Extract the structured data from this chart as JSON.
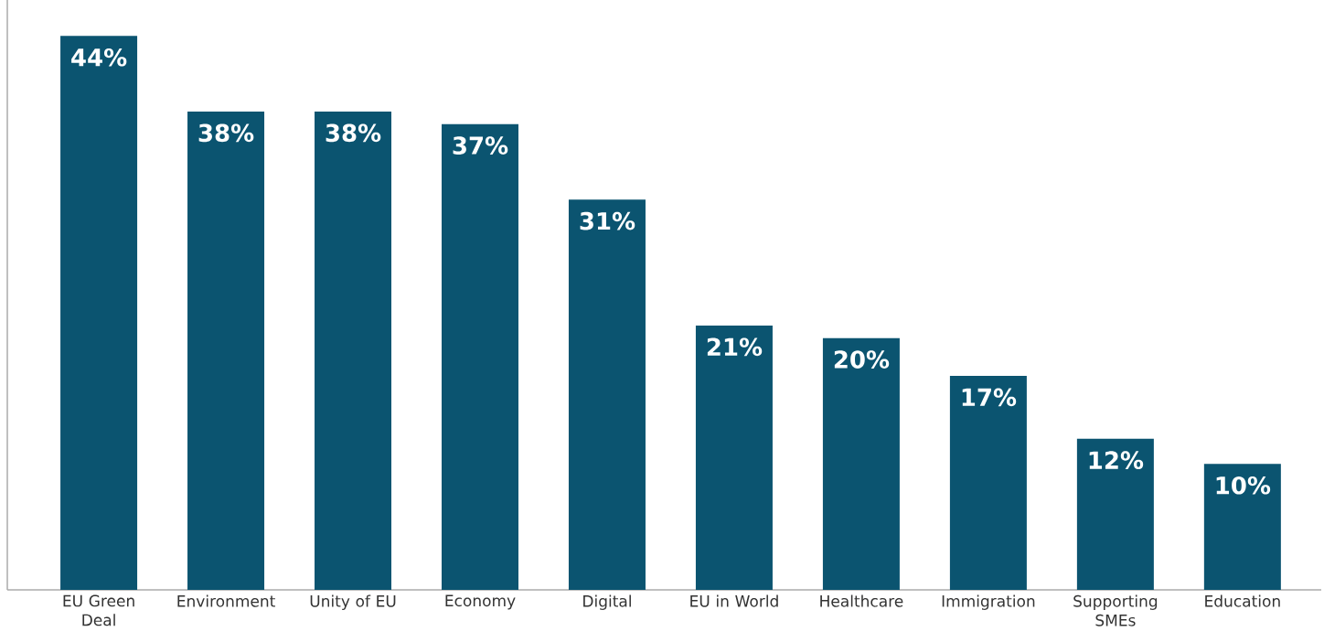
{
  "chart_data": {
    "type": "bar",
    "categories": [
      "EU Green Deal",
      "Environment",
      "Unity of EU",
      "Economy",
      "Digital",
      "EU in World",
      "Healthcare",
      "Immigration",
      "Supporting SMEs",
      "Education"
    ],
    "values": [
      44,
      38,
      38,
      37,
      31,
      21,
      20,
      17,
      12,
      10
    ],
    "value_labels": [
      "44%",
      "38%",
      "38%",
      "37%",
      "31%",
      "21%",
      "20%",
      "17%",
      "12%",
      "10%"
    ],
    "color": "#0b5470"
  }
}
